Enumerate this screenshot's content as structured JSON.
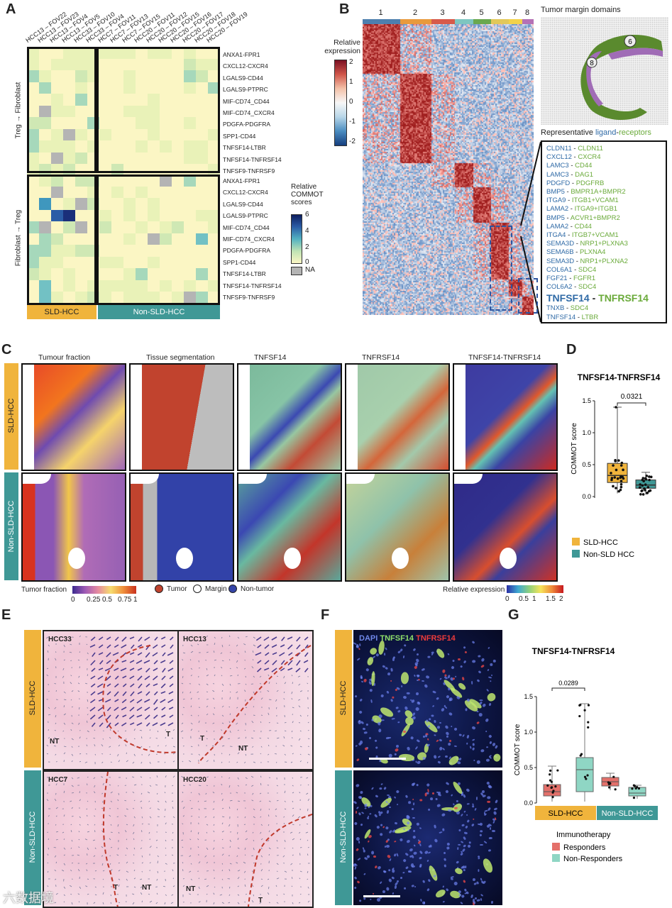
{
  "panels": {
    "A": {
      "letter": "A",
      "columns": [
        "HCC13 – FOV22",
        "HCC13 – FOV23",
        "HCC13 – FOV4",
        "HCC13 – FOV5",
        "HCC33 – FOV10",
        "HCC33 – FOV4",
        "HCC7 – FOV11",
        "HCC7 – FOV13",
        "HCC7 – FOV15",
        "HCC20 – FOV11",
        "HCC20 – FOV12",
        "HCC20 – FOV15",
        "HCC20 – FOV16",
        "HCC20 – FOV17",
        "HCC20 – FOV18",
        "HCC20 – FOV19"
      ],
      "rows_top": [
        "ANXA1-FPR1",
        "CXCL12-CXCR4",
        "LGALS9-CD44",
        "LGALS9-PTPRC",
        "MIF-CD74_CD44",
        "MIF-CD74_CXCR4",
        "PDGFA-PDGFRA",
        "SPP1-CD44",
        "TNFSF14-LTBR",
        "TNFSF14-TNFRSF14",
        "TNFSF9-TNFRSF9"
      ],
      "rows_bottom": [
        "ANXA1-FPR1",
        "CXCL12-CXCR4",
        "LGALS9-CD44",
        "LGALS9-PTPRC",
        "MIF-CD74_CD44",
        "MIF-CD74_CXCR4",
        "PDGFA-PDGFRA",
        "SPP1-CD44",
        "TNFSF14-LTBR",
        "TNFSF14-TNFRSF14",
        "TNFSF9-TNFRSF9"
      ],
      "group_top": "Treg → Fibroblast",
      "group_bottom": "Fibroblast → Treg",
      "legend_title": "Relative COMMOT scores",
      "legend_ticks": [
        "6",
        "4",
        "2",
        "0"
      ],
      "legend_na": "NA",
      "bar_sld": "SLD-HCC",
      "bar_non": "Non-SLD-HCC"
    },
    "B": {
      "letter": "B",
      "cluster_numbers": [
        "1",
        "2",
        "3",
        "4",
        "5",
        "6",
        "7",
        "8"
      ],
      "legend_title": "Relative expression",
      "legend_ticks": [
        "2",
        "1",
        "0",
        "-1",
        "-2"
      ],
      "map_title": "Tumor margin domains",
      "map_labels": [
        "6",
        "8"
      ],
      "lr_title_a": "Representative ",
      "lr_title_b": "ligand",
      "lr_title_c": "-",
      "lr_title_d": "receptors",
      "pairs": [
        [
          "CLDN11",
          "CLDN11"
        ],
        [
          "CXCL12",
          "CXCR4"
        ],
        [
          "LAMC3",
          "CD44"
        ],
        [
          "LAMC3",
          "DAG1"
        ],
        [
          "PDGFD",
          "PDGFRB"
        ],
        [
          "BMP5",
          "BMPR1A+BMPR2"
        ],
        [
          "ITGA9",
          "ITGB1+VCAM1"
        ],
        [
          "LAMA2",
          "ITGA9+ITGB1"
        ],
        [
          "BMP5",
          "ACVR1+BMPR2"
        ],
        [
          "LAMA2",
          "CD44"
        ],
        [
          "ITGA4",
          "ITGB7+VCAM1"
        ],
        [
          "SEMA3D",
          "NRP1+PLXNA3"
        ],
        [
          "SEMA6B",
          "PLXNA4"
        ],
        [
          "SEMA3D",
          "NRP1+PLXNA2"
        ],
        [
          "COL6A1",
          "SDC4"
        ],
        [
          "FGF21",
          "FGFR1"
        ],
        [
          "COL6A2",
          "SDC4"
        ]
      ],
      "highlight": [
        "TNFSF14",
        "TNFRSF14"
      ],
      "pairs_after": [
        [
          "TNXB",
          "SDC4"
        ],
        [
          "TNFSF14",
          "LTBR"
        ]
      ]
    },
    "C": {
      "letter": "C",
      "titles": [
        "Tumour fraction",
        "Tissue segmentation",
        "TNFSF14",
        "TNFRSF14",
        "TNFSF14-TNFRSF14"
      ],
      "row_sld": "SLD-HCC",
      "row_non": "Non-SLD-HCC",
      "tf_label": "Tumor fraction",
      "tf_ticks": [
        "0",
        "0.25",
        "0.5",
        "0.75",
        "1"
      ],
      "seg_legend": [
        "Tumor",
        "Margin",
        "Non-tumor"
      ],
      "seg_colors": [
        "#c1432e",
        "#ffffff",
        "#3545a8"
      ],
      "re_label": "Relative expression",
      "re_ticks": [
        "0",
        "0.5",
        "1",
        "1.5",
        "2"
      ]
    },
    "D": {
      "letter": "D",
      "chart_data": {
        "type": "box",
        "title": "TNFSF14-TNFRSF14",
        "ylabel": "COMMOT score",
        "categories": [
          "SLD-HCC",
          "Non-SLD HCC"
        ],
        "ylim": [
          0,
          1.5
        ],
        "yticks": [
          "0.0",
          "0.5",
          "1.0",
          "1.5"
        ],
        "pvalue": "0.0321",
        "series": [
          {
            "name": "SLD-HCC",
            "color": "#f0b43c",
            "q1": 0.22,
            "median": 0.33,
            "q3": 0.52,
            "min": 0.05,
            "max": 1.4
          },
          {
            "name": "Non-SLD HCC",
            "color": "#3f9896",
            "q1": 0.13,
            "median": 0.18,
            "q3": 0.26,
            "min": 0.03,
            "max": 0.38
          }
        ],
        "legend": [
          "SLD-HCC",
          "Non-SLD HCC"
        ]
      }
    },
    "E": {
      "letter": "E",
      "row_sld": "SLD-HCC",
      "row_non": "Non-SLD-HCC",
      "samples": [
        "HCC33",
        "HCC13",
        "HCC7",
        "HCC20"
      ],
      "tags": {
        "t": "T",
        "nt": "NT"
      }
    },
    "F": {
      "letter": "F",
      "stain_dapi": "DAPI",
      "stain_a": "TNFSF14",
      "stain_b": "TNFRSF14",
      "row_sld": "SLD-HCC",
      "row_non": "Non-SLD-HCC"
    },
    "G": {
      "letter": "G",
      "chart_data": {
        "type": "box",
        "title": "TNFSF14-TNFRSF14",
        "ylabel": "COMMOT score",
        "ylim": [
          0,
          1.5
        ],
        "yticks": [
          "0.0",
          "0.5",
          "1.0",
          "1.5"
        ],
        "pvalue": "0.0289",
        "groups": [
          "SLD-HCC",
          "Non-SLD-HCC"
        ],
        "series": [
          {
            "name": "SLD Responders",
            "color": "#e4706a",
            "q1": 0.1,
            "median": 0.16,
            "q3": 0.26,
            "min": 0.02,
            "max": 0.52
          },
          {
            "name": "SLD Non-Responders",
            "color": "#8fd6c4",
            "q1": 0.16,
            "median": 0.47,
            "q3": 0.64,
            "min": 0.02,
            "max": 1.4
          },
          {
            "name": "Non-SLD Responders",
            "color": "#e4706a",
            "q1": 0.24,
            "median": 0.3,
            "q3": 0.36,
            "min": 0.18,
            "max": 0.42
          },
          {
            "name": "Non-SLD Non-Responders",
            "color": "#8fd6c4",
            "q1": 0.1,
            "median": 0.14,
            "q3": 0.22,
            "min": 0.06,
            "max": 0.25
          }
        ],
        "legend_title": "Immunotherapy",
        "legend": [
          "Responders",
          "Non-Responders"
        ]
      }
    }
  },
  "watermark": "六数据境"
}
